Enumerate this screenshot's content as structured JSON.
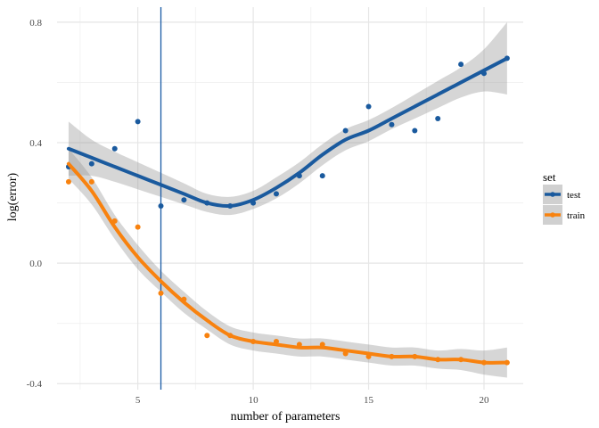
{
  "chart_data": {
    "type": "scatter",
    "title": "",
    "xlabel": "number of parameters",
    "ylabel": "log(error)",
    "xlim": [
      1.5,
      21.7
    ],
    "ylim": [
      -0.42,
      0.85
    ],
    "x_ticks": [
      5,
      10,
      15,
      20
    ],
    "y_ticks": [
      -0.4,
      0.0,
      0.4,
      0.8
    ],
    "x_tick_labels": [
      "5",
      "10",
      "15",
      "20"
    ],
    "y_tick_labels": [
      "-0.4",
      "0.0",
      "0.4",
      "0.8"
    ],
    "grid": true,
    "legend_title": "set",
    "legend_position": "right",
    "vline": {
      "x": 6,
      "color": "#1a5ba6"
    },
    "series": [
      {
        "name": "test",
        "color": "#1a5a9e",
        "points": {
          "x": [
            2,
            3,
            4,
            5,
            6,
            7,
            8,
            9,
            10,
            11,
            12,
            13,
            14,
            15,
            16,
            17,
            18,
            19,
            20,
            21
          ],
          "y": [
            0.32,
            0.33,
            0.38,
            0.47,
            0.19,
            0.21,
            0.2,
            0.19,
            0.2,
            0.23,
            0.29,
            0.29,
            0.44,
            0.52,
            0.46,
            0.44,
            0.48,
            0.66,
            0.63,
            0.68
          ]
        },
        "smooth": {
          "x": [
            2,
            3,
            4,
            5,
            6,
            7,
            8,
            9,
            10,
            11,
            12,
            13,
            14,
            15,
            16,
            17,
            18,
            19,
            20,
            21
          ],
          "y": [
            0.38,
            0.35,
            0.32,
            0.29,
            0.26,
            0.23,
            0.2,
            0.19,
            0.21,
            0.25,
            0.3,
            0.36,
            0.41,
            0.44,
            0.48,
            0.52,
            0.56,
            0.6,
            0.64,
            0.68
          ],
          "se": [
            0.09,
            0.06,
            0.05,
            0.045,
            0.04,
            0.035,
            0.03,
            0.03,
            0.03,
            0.035,
            0.035,
            0.035,
            0.035,
            0.035,
            0.035,
            0.04,
            0.045,
            0.05,
            0.07,
            0.12
          ]
        }
      },
      {
        "name": "train",
        "color": "#f8820f",
        "points": {
          "x": [
            2,
            3,
            4,
            5,
            6,
            7,
            8,
            9,
            10,
            11,
            12,
            13,
            14,
            15,
            16,
            17,
            18,
            19,
            20,
            21
          ],
          "y": [
            0.27,
            0.27,
            0.14,
            0.12,
            -0.1,
            -0.12,
            -0.24,
            -0.24,
            -0.26,
            -0.26,
            -0.27,
            -0.27,
            -0.3,
            -0.31,
            -0.31,
            -0.31,
            -0.32,
            -0.32,
            -0.33,
            -0.33
          ]
        },
        "smooth": {
          "x": [
            2,
            3,
            4,
            5,
            6,
            7,
            8,
            9,
            10,
            11,
            12,
            13,
            14,
            15,
            16,
            17,
            18,
            19,
            20,
            21
          ],
          "y": [
            0.33,
            0.24,
            0.12,
            0.02,
            -0.06,
            -0.13,
            -0.19,
            -0.24,
            -0.26,
            -0.27,
            -0.28,
            -0.28,
            -0.29,
            -0.3,
            -0.31,
            -0.31,
            -0.32,
            -0.32,
            -0.33,
            -0.33
          ],
          "se": [
            0.05,
            0.045,
            0.04,
            0.04,
            0.035,
            0.035,
            0.03,
            0.03,
            0.03,
            0.03,
            0.03,
            0.03,
            0.03,
            0.03,
            0.03,
            0.03,
            0.03,
            0.035,
            0.04,
            0.05
          ]
        }
      }
    ]
  }
}
